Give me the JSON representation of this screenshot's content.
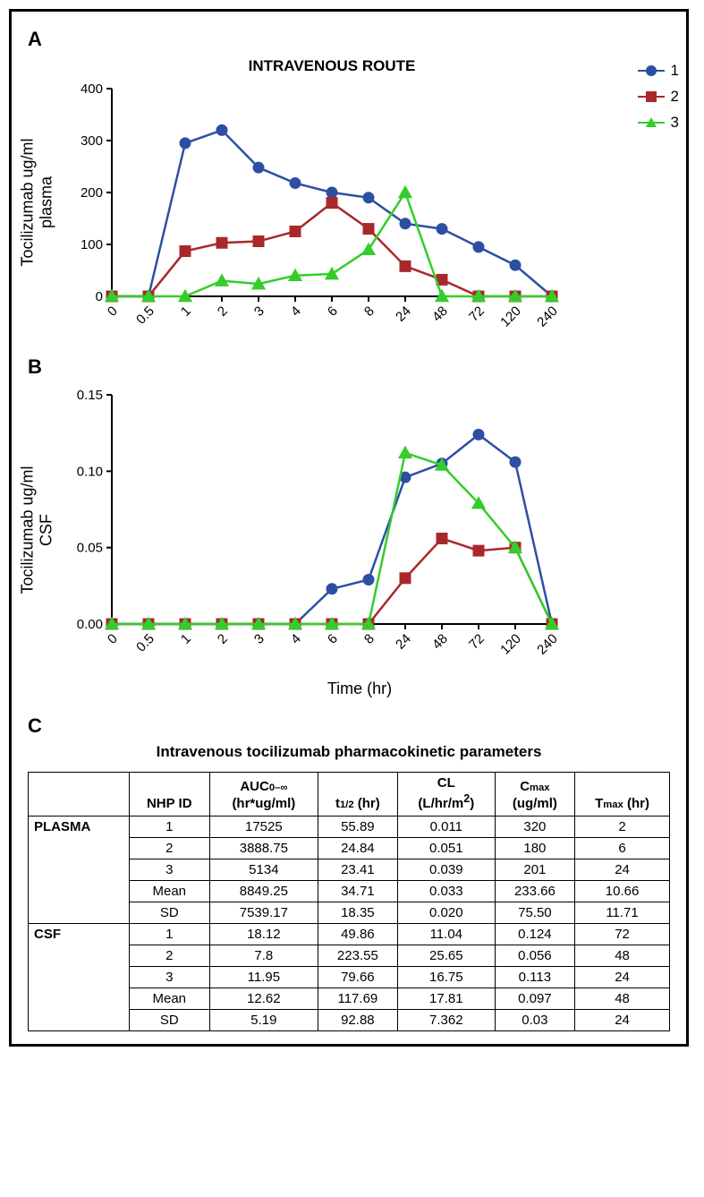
{
  "panels": {
    "A": "A",
    "B": "B",
    "C": "C"
  },
  "colors": {
    "series1": "#2d4fa3",
    "series2": "#a9282b",
    "series3": "#34cd2c",
    "axis": "#000000",
    "grid": "#ffffff"
  },
  "markers": {
    "1": "circle",
    "2": "square",
    "3": "triangle"
  },
  "line_width": 2.5,
  "marker_size": 6,
  "legend_items": [
    {
      "label": "1",
      "series": 1
    },
    {
      "label": "2",
      "series": 2
    },
    {
      "label": "3",
      "series": 3
    }
  ],
  "x_categories": [
    "0",
    "0.5",
    "1",
    "2",
    "3",
    "4",
    "6",
    "8",
    "24",
    "48",
    "72",
    "120",
    "240"
  ],
  "chartA": {
    "type": "line",
    "title": "INTRAVENOUS ROUTE",
    "ylabel": "Tocilizumab ug/ml\nplasma",
    "ylim": [
      0,
      400
    ],
    "ytick_step": 100,
    "series": {
      "1": [
        0,
        0,
        295,
        320,
        248,
        218,
        200,
        190,
        140,
        130,
        95,
        60,
        0
      ],
      "2": [
        0,
        0,
        87,
        103,
        106,
        125,
        180,
        130,
        58,
        32,
        0,
        0,
        0
      ],
      "3": [
        0,
        0,
        0,
        30,
        24,
        40,
        43,
        90,
        200,
        0,
        0,
        0,
        0
      ]
    }
  },
  "chartB": {
    "type": "line",
    "ylabel": "Tocilizumab ug/ml\nCSF",
    "xlabel": "Time (hr)",
    "ylim": [
      0,
      0.15
    ],
    "ytick_step": 0.05,
    "series": {
      "1": [
        0,
        0,
        0,
        0,
        0,
        0,
        0.023,
        0.029,
        0.096,
        0.105,
        0.124,
        0.106,
        0
      ],
      "2": [
        0,
        0,
        0,
        0,
        0,
        0,
        0,
        0,
        0.03,
        0.056,
        0.048,
        0.05,
        0
      ],
      "3": [
        0,
        0,
        0,
        0,
        0,
        0,
        0,
        0,
        0.112,
        0.104,
        0.079,
        0.05,
        0
      ]
    }
  },
  "table": {
    "title": "Intravenous tocilizumab pharmacokinetic parameters",
    "columns": [
      "NHP ID",
      "AUC₀₋∞ (hr*ug/ml)",
      "t₁/₂ (hr)",
      "CL (L/hr/m²)",
      "Cₘₐₓ (ug/ml)",
      "Tₘₐₓ (hr)"
    ],
    "groups": [
      {
        "name": "PLASMA",
        "rows": [
          [
            "1",
            "17525",
            "55.89",
            "0.011",
            "320",
            "2"
          ],
          [
            "2",
            "3888.75",
            "24.84",
            "0.051",
            "180",
            "6"
          ],
          [
            "3",
            "5134",
            "23.41",
            "0.039",
            "201",
            "24"
          ],
          [
            "Mean",
            "8849.25",
            "34.71",
            "0.033",
            "233.66",
            "10.66"
          ],
          [
            "SD",
            "7539.17",
            "18.35",
            "0.020",
            "75.50",
            "11.71"
          ]
        ]
      },
      {
        "name": "CSF",
        "rows": [
          [
            "1",
            "18.12",
            "49.86",
            "11.04",
            "0.124",
            "72"
          ],
          [
            "2",
            "7.8",
            "223.55",
            "25.65",
            "0.056",
            "48"
          ],
          [
            "3",
            "11.95",
            "79.66",
            "16.75",
            "0.113",
            "24"
          ],
          [
            "Mean",
            "12.62",
            "117.69",
            "17.81",
            "0.097",
            "48"
          ],
          [
            "SD",
            "5.19",
            "92.88",
            "7.362",
            "0.03",
            "24"
          ]
        ]
      }
    ]
  }
}
